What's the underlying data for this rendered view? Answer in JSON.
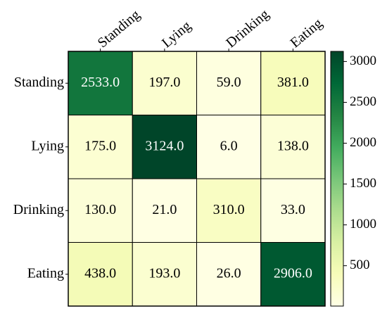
{
  "chart_data": {
    "type": "heatmap",
    "x_categories": [
      "Standing",
      "Lying",
      "Drinking",
      "Eating"
    ],
    "y_categories": [
      "Standing",
      "Lying",
      "Drinking",
      "Eating"
    ],
    "values": [
      [
        2533,
        197,
        59,
        381
      ],
      [
        175,
        3124,
        6,
        138
      ],
      [
        130,
        21,
        310,
        33
      ],
      [
        438,
        193,
        26,
        2906
      ]
    ],
    "value_labels": [
      [
        "2533.0",
        "197.0",
        "59.0",
        "381.0"
      ],
      [
        "175.0",
        "3124.0",
        "6.0",
        "138.0"
      ],
      [
        "130.0",
        "21.0",
        "310.0",
        "33.0"
      ],
      [
        "438.0",
        "193.0",
        "26.0",
        "2906.0"
      ]
    ],
    "colors": [
      "#ffffe5",
      "#f7fcb9",
      "#d9f0a3",
      "#addd8e",
      "#78c679",
      "#41ab5d",
      "#238443",
      "#006837",
      "#004529"
    ],
    "zlim": [
      6,
      3124
    ],
    "zticks": [
      500,
      1000,
      1500,
      2000,
      2500,
      3000
    ]
  }
}
